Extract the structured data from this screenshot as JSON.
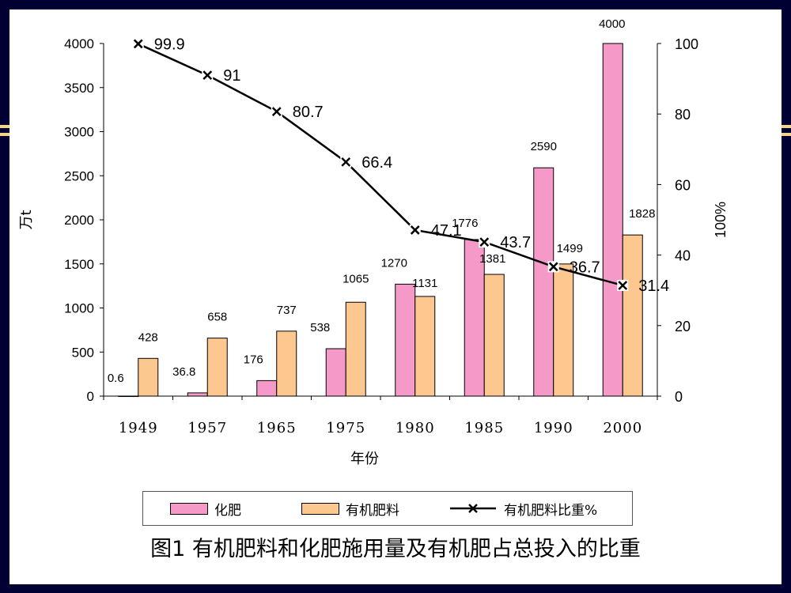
{
  "colors": {
    "background": "#000033",
    "decor_line": "#f3d48a",
    "chemical_bar": "#f59ac8",
    "organic_bar": "#fcc890",
    "line": "#000000"
  },
  "caption": "图1 有机肥料和化肥施用量及有机肥占总投入的比重",
  "chart_data": {
    "type": "bar+line",
    "xlabel": "年份",
    "ylabel_left": "万t",
    "ylabel_right": "100%",
    "categories": [
      "1949",
      "1957",
      "1965",
      "1975",
      "1980",
      "1985",
      "1990",
      "2000"
    ],
    "y_left": {
      "min": 0,
      "max": 4000,
      "ticks": [
        "0",
        "500",
        "1000",
        "1500",
        "2000",
        "2500",
        "3000",
        "3500",
        "4000"
      ]
    },
    "y_right": {
      "min": 0,
      "max": 100,
      "ticks": [
        "0",
        "20",
        "40",
        "60",
        "80",
        "100"
      ]
    },
    "series": [
      {
        "name": "化肥",
        "kind": "bar",
        "axis": "left",
        "color": "#f59ac8",
        "values": [
          0.6,
          36.8,
          176,
          538,
          1270,
          1776,
          2590,
          4000
        ],
        "labels": [
          "0.6",
          "36.8",
          "176",
          "538",
          "1270",
          "1776",
          "2590",
          "4000"
        ]
      },
      {
        "name": "有机肥料",
        "kind": "bar",
        "axis": "left",
        "color": "#fcc890",
        "values": [
          428,
          658,
          737,
          1065,
          1131,
          1381,
          1499,
          1828
        ],
        "labels": [
          "428",
          "658",
          "737",
          "1065",
          "1131",
          "1381",
          "1499",
          "1828"
        ]
      },
      {
        "name": "有机肥料比重%",
        "kind": "line",
        "axis": "right",
        "color": "#000000",
        "values": [
          99.9,
          91,
          80.7,
          66.4,
          47.1,
          43.7,
          36.7,
          31.4
        ],
        "labels": [
          "99.9",
          "91",
          "80.7",
          "66.4",
          "47.1",
          "43.7",
          "36.7",
          "31.4"
        ]
      }
    ],
    "grid": false,
    "legend_position": "bottom"
  }
}
